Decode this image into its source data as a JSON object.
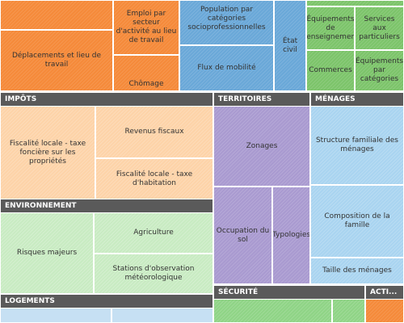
{
  "treemap": {
    "top": {
      "deplacements": "Déplacements et lieu de travail",
      "emploi_secteur": "Emploi par secteur d'activité au lieu de travail",
      "chomage": "Chômage",
      "population_csp": "Population par catégories socioprofessionnelles",
      "flux_mobilite": "Flux de mobilité",
      "etat_civil": "État civil",
      "equipements_enseignement": "Équipements de l'enseignement",
      "services_particuliers": "Services aux particuliers",
      "commerces": "Commerces",
      "equipements_categories": "Équipements par catégories"
    },
    "impots": {
      "header": "IMPÔTS",
      "fiscalite_fonciere": "Fiscalité locale - taxe foncière sur les propriétés",
      "revenus_fiscaux": "Revenus fiscaux",
      "fiscalite_habitation": "Fiscalité locale - taxe d'habitation"
    },
    "environnement": {
      "header": "ENVIRONNEMENT",
      "risques_majeurs": "Risques majeurs",
      "agriculture": "Agriculture",
      "stations_meteo": "Stations d'observation météorologique"
    },
    "logements": {
      "header": "LOGEMENTS"
    },
    "territoires": {
      "header": "TERRITOIRES",
      "zonages": "Zonages",
      "occupation_sol": "Occupation du sol",
      "typologies": "Typologies"
    },
    "menages": {
      "header": "MÉNAGES",
      "structure_familiale": "Structure familiale des ménages",
      "composition_famille": "Composition de la famille",
      "taille_menages": "Taille des ménages"
    },
    "securite": {
      "header": "SÉCURITÉ"
    },
    "activite": {
      "header": "ACTI..."
    }
  }
}
